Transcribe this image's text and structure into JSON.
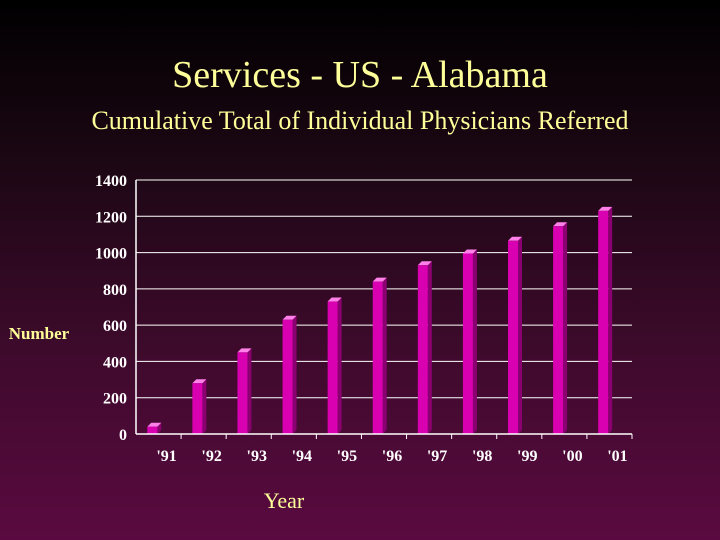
{
  "colors": {
    "title": "#ffff99",
    "text": "#ffffff",
    "ylabel": "#ffff99",
    "bar_front": "#d800b0",
    "bar_side": "#8a0070",
    "bar_top": "#ff80e8",
    "grid": "#ffffff"
  },
  "slide": {
    "title": "Services - US - Alabama",
    "subtitle": "Cumulative Total of Individual Physicians Referred"
  },
  "chart_data": {
    "type": "bar",
    "title": "",
    "xlabel": "Year",
    "ylabel": "Number",
    "categories": [
      "'91",
      "'92",
      "'93",
      "'94",
      "'95",
      "'96",
      "'97",
      "'98",
      "'99",
      "'00",
      "'01"
    ],
    "values": [
      40,
      280,
      450,
      630,
      730,
      840,
      930,
      995,
      1065,
      1145,
      1230
    ],
    "ylim": [
      0,
      1400
    ],
    "yticks": [
      "0",
      "200",
      "400",
      "600",
      "800",
      "1000",
      "1200",
      "1400"
    ],
    "grid": true,
    "legend": "none"
  }
}
